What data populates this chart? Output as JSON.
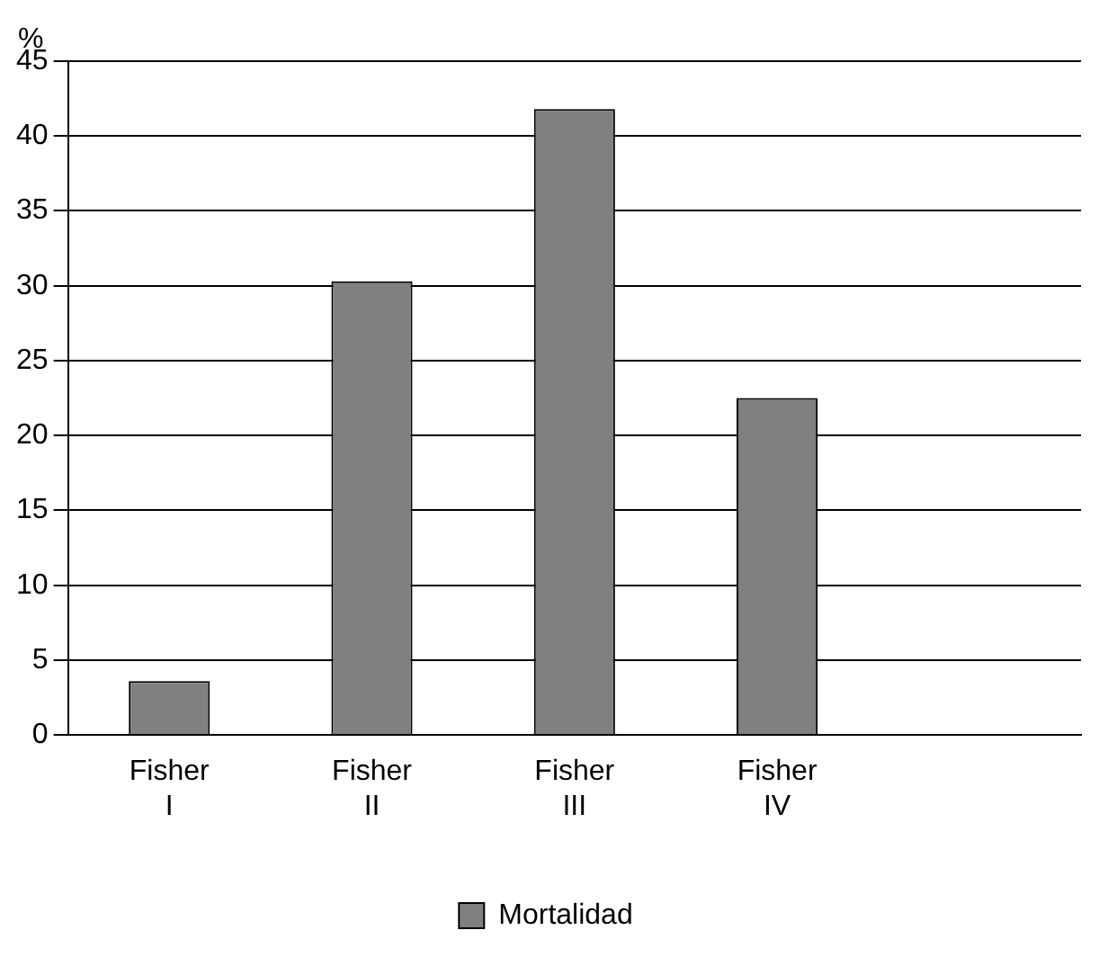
{
  "chart_data": {
    "type": "bar",
    "ylabel": "%",
    "categories": [
      "Fisher I",
      "Fisher II",
      "Fisher III",
      "Fisher IV",
      null
    ],
    "series": [
      {
        "name": "Mortalidad",
        "color": "#808080",
        "values": [
          3.6,
          30.3,
          41.8,
          22.5,
          null
        ]
      }
    ],
    "ylim": [
      0,
      45
    ],
    "yticks": [
      0,
      5,
      10,
      15,
      20,
      25,
      30,
      35,
      40,
      45
    ],
    "grid": "y",
    "legend": "bottom"
  }
}
